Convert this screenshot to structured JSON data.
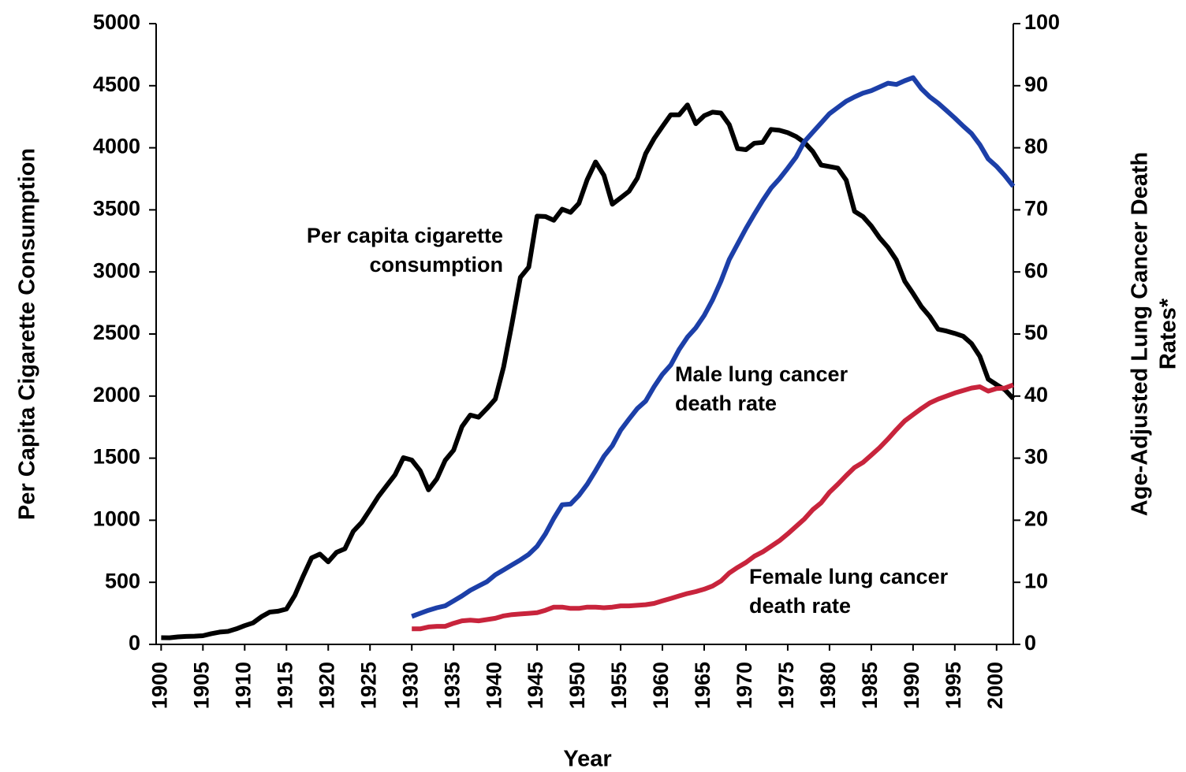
{
  "chart_data": {
    "type": "line",
    "xlabel": "Year",
    "ylabel": "Per Capita Cigarette Consumption",
    "y2label": [
      "Age-Adjusted Lung Cancer Death",
      "Rates*"
    ],
    "annotations": [
      [
        "Per capita cigarette",
        "consumption"
      ],
      [
        "Male lung cancer",
        "death rate"
      ],
      [
        "Female lung cancer",
        "death rate"
      ]
    ],
    "xlim": [
      1899.4,
      2002
    ],
    "xticks": [
      1900,
      1905,
      1910,
      1915,
      1920,
      1925,
      1930,
      1935,
      1940,
      1945,
      1950,
      1955,
      1960,
      1965,
      1970,
      1975,
      1980,
      1985,
      1990,
      1995,
      2000
    ],
    "ylim": [
      0,
      5000
    ],
    "yticks": [
      0,
      500,
      1000,
      1500,
      2000,
      2500,
      3000,
      3500,
      4000,
      4500,
      5000
    ],
    "y2lim": [
      0,
      100
    ],
    "y2ticks": [
      0,
      10,
      20,
      30,
      40,
      50,
      60,
      70,
      80,
      90,
      100
    ],
    "x": [
      1900,
      1901,
      1902,
      1903,
      1904,
      1905,
      1906,
      1907,
      1908,
      1909,
      1910,
      1911,
      1912,
      1913,
      1914,
      1915,
      1916,
      1917,
      1918,
      1919,
      1920,
      1921,
      1922,
      1923,
      1924,
      1925,
      1926,
      1927,
      1928,
      1929,
      1930,
      1931,
      1932,
      1933,
      1934,
      1935,
      1936,
      1937,
      1938,
      1939,
      1940,
      1941,
      1942,
      1943,
      1944,
      1945,
      1946,
      1947,
      1948,
      1949,
      1950,
      1951,
      1952,
      1953,
      1954,
      1955,
      1956,
      1957,
      1958,
      1959,
      1960,
      1961,
      1962,
      1963,
      1964,
      1965,
      1966,
      1967,
      1968,
      1969,
      1970,
      1971,
      1972,
      1973,
      1974,
      1975,
      1976,
      1977,
      1978,
      1979,
      1980,
      1981,
      1982,
      1983,
      1984,
      1985,
      1986,
      1987,
      1988,
      1989,
      1990,
      1991,
      1992,
      1993,
      1994,
      1995,
      1996,
      1997,
      1998,
      1999,
      2000,
      2001,
      2002
    ],
    "series": [
      {
        "name": "Per capita cigarette consumption",
        "color": "#000000",
        "axis": "y",
        "values": [
          54,
          53,
          60,
          64,
          66,
          70,
          86,
          99,
          105,
          125,
          151,
          173,
          223,
          260,
          267,
          285,
          395,
          551,
          697,
          727,
          665,
          742,
          770,
          911,
          982,
          1085,
          1191,
          1279,
          1366,
          1504,
          1485,
          1399,
          1245,
          1334,
          1483,
          1564,
          1754,
          1847,
          1830,
          1900,
          1976,
          2236,
          2585,
          2956,
          3039,
          3449,
          3446,
          3416,
          3505,
          3480,
          3552,
          3744,
          3886,
          3778,
          3546,
          3597,
          3650,
          3755,
          3953,
          4073,
          4171,
          4266,
          4265,
          4345,
          4194,
          4258,
          4287,
          4280,
          4186,
          3993,
          3985,
          4037,
          4043,
          4148,
          4141,
          4122,
          4091,
          4043,
          3970,
          3861,
          3849,
          3836,
          3739,
          3488,
          3446,
          3370,
          3274,
          3197,
          3096,
          2926,
          2826,
          2720,
          2641,
          2539,
          2524,
          2505,
          2482,
          2423,
          2320,
          2136,
          2092,
          2051,
          1979
        ]
      },
      {
        "name": "Male lung cancer death rate",
        "color": "#1c3fa8",
        "axis": "y2",
        "values": [
          null,
          null,
          null,
          null,
          null,
          null,
          null,
          null,
          null,
          null,
          null,
          null,
          null,
          null,
          null,
          null,
          null,
          null,
          null,
          null,
          null,
          null,
          null,
          null,
          null,
          null,
          null,
          null,
          null,
          null,
          4.5,
          5,
          5.5,
          5.9,
          6.2,
          7,
          7.8,
          8.7,
          9.4,
          10.1,
          11.2,
          12,
          12.8,
          13.6,
          14.5,
          15.8,
          17.8,
          20.3,
          22.5,
          22.6,
          24,
          25.8,
          28,
          30.3,
          32,
          34.5,
          36.3,
          38,
          39.2,
          41.5,
          43.5,
          45,
          47.5,
          49.5,
          51,
          53,
          55.5,
          58.5,
          62,
          64.5,
          67,
          69.3,
          71.5,
          73.5,
          75,
          76.7,
          78.5,
          81,
          82.5,
          84,
          85.5,
          86.5,
          87.5,
          88.2,
          88.8,
          89.2,
          89.8,
          90.4,
          90.2,
          90.8,
          91.3,
          89.5,
          88.2,
          87.2,
          86,
          84.8,
          83.5,
          82.3,
          80.5,
          78.2,
          77,
          75.5,
          73.8
        ]
      },
      {
        "name": "Female lung cancer death rate",
        "color": "#c8243c",
        "axis": "y2",
        "values": [
          null,
          null,
          null,
          null,
          null,
          null,
          null,
          null,
          null,
          null,
          null,
          null,
          null,
          null,
          null,
          null,
          null,
          null,
          null,
          null,
          null,
          null,
          null,
          null,
          null,
          null,
          null,
          null,
          null,
          null,
          2.5,
          2.5,
          2.8,
          2.9,
          2.9,
          3.4,
          3.8,
          3.9,
          3.8,
          4,
          4.2,
          4.6,
          4.8,
          4.9,
          5,
          5.1,
          5.5,
          6,
          6,
          5.8,
          5.8,
          6,
          6,
          5.9,
          6,
          6.2,
          6.2,
          6.3,
          6.4,
          6.6,
          7,
          7.4,
          7.8,
          8.2,
          8.5,
          8.9,
          9.4,
          10.2,
          11.5,
          12.4,
          13.2,
          14.2,
          14.9,
          15.8,
          16.7,
          17.8,
          19,
          20.2,
          21.7,
          22.8,
          24.5,
          25.8,
          27.2,
          28.5,
          29.3,
          30.5,
          31.7,
          33.1,
          34.6,
          36,
          37,
          38,
          38.9,
          39.5,
          40,
          40.5,
          40.9,
          41.3,
          41.5,
          40.8,
          41.2,
          41.3,
          41.8
        ]
      }
    ]
  }
}
